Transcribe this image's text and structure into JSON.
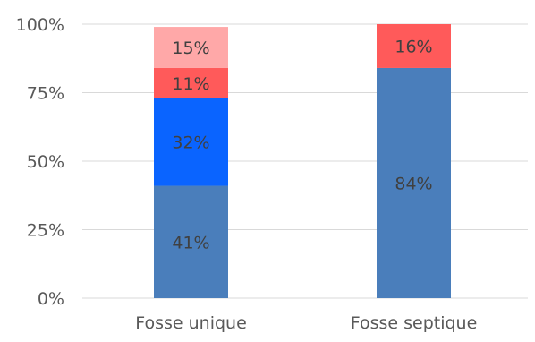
{
  "chart_data": {
    "type": "bar",
    "stacked": true,
    "percent_stacked": true,
    "categories": [
      "Fosse unique",
      "Fosse septique"
    ],
    "series": [
      {
        "color": "#4a7ebb",
        "values": [
          41,
          84
        ],
        "labels": [
          "41%",
          "84%"
        ]
      },
      {
        "color": "#0a64ff",
        "values": [
          32,
          0
        ],
        "labels": [
          "32%",
          ""
        ]
      },
      {
        "color": "#ff5a5a",
        "values": [
          11,
          16
        ],
        "labels": [
          "11%",
          "16%"
        ]
      },
      {
        "color": "#ffa8a8",
        "values": [
          15,
          0
        ],
        "labels": [
          "15%",
          ""
        ]
      }
    ],
    "y_ticks": [
      "0%",
      "25%",
      "50%",
      "75%",
      "100%"
    ],
    "ylim": [
      0,
      100
    ],
    "grid": true,
    "legend": "none",
    "title": "",
    "xlabel": "",
    "ylabel": ""
  }
}
